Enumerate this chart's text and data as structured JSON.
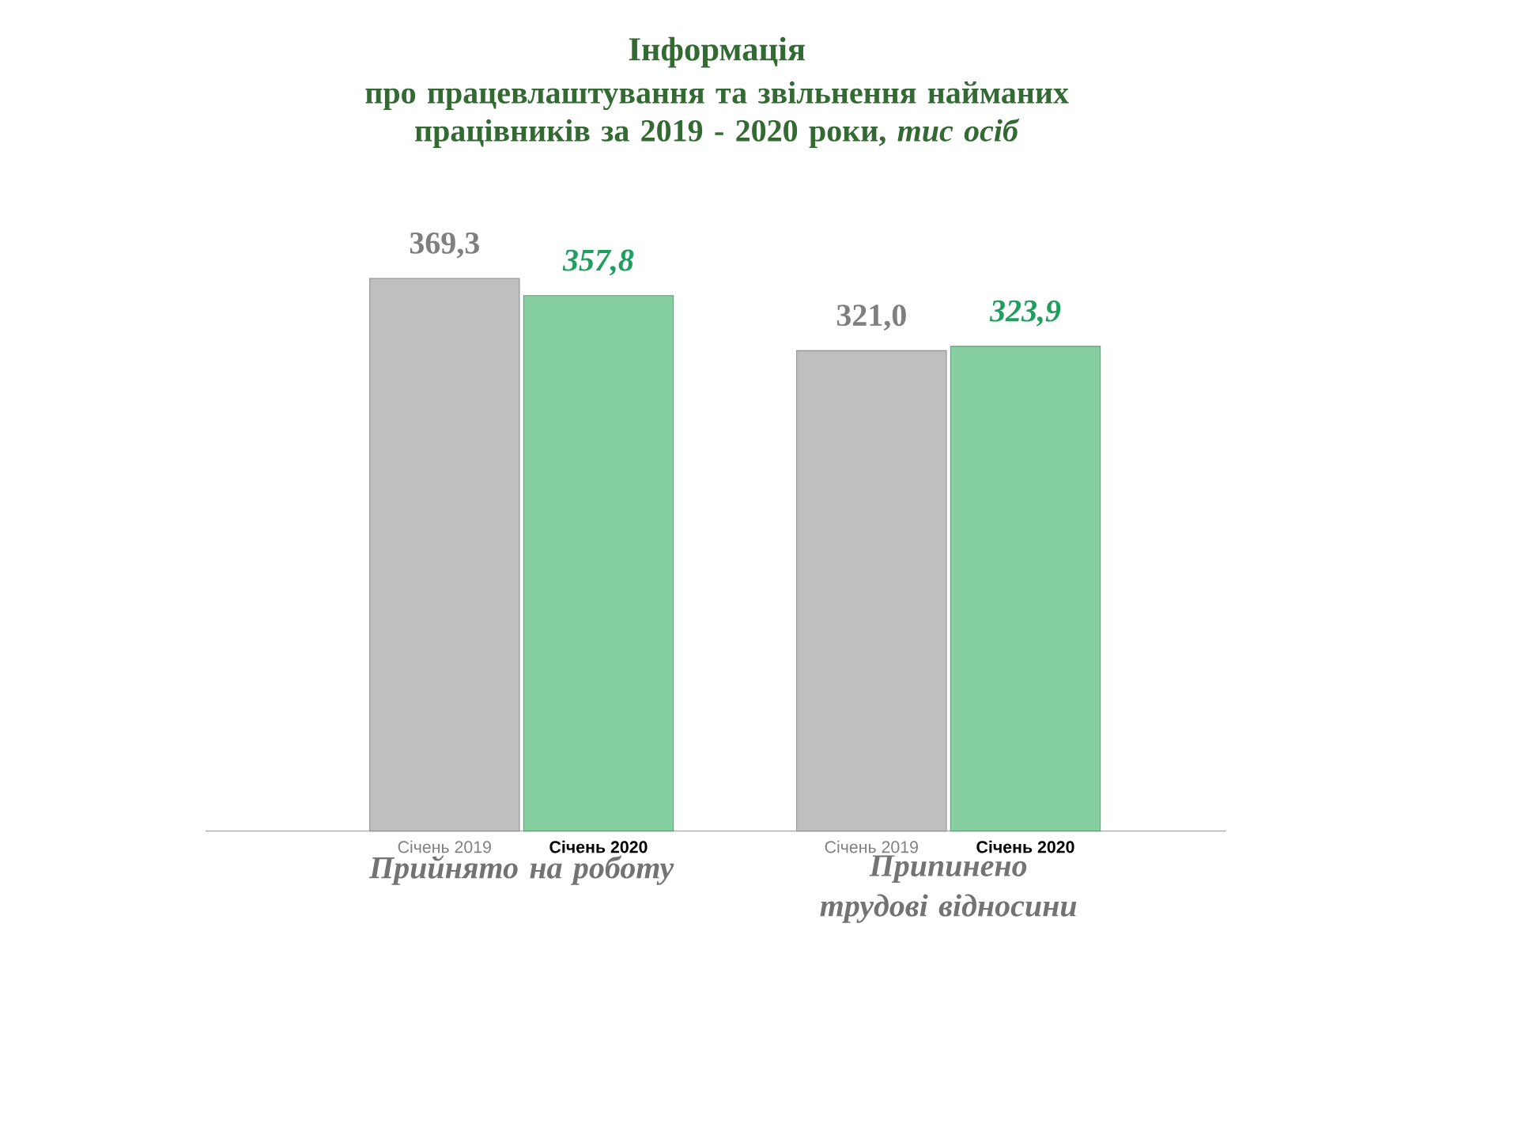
{
  "chart_data": {
    "type": "bar",
    "title": "Інформація",
    "subtitle": "про працевлаштування та звільнення найманих працівників за 2019 - 2020 роки, *тис осіб*",
    "categories": [
      "Прийнято на роботу",
      "Припинено трудові відносини"
    ],
    "series": [
      {
        "name": "Січень 2019",
        "color": "#bfbfbf",
        "values": [
          369.3,
          321.0
        ],
        "value_labels": [
          "369,3",
          "321,0"
        ]
      },
      {
        "name": "Січень 2020",
        "color": "#86cfa0",
        "values": [
          357.8,
          323.9
        ],
        "value_labels": [
          "357,8",
          "323,9"
        ]
      }
    ]
  }
}
